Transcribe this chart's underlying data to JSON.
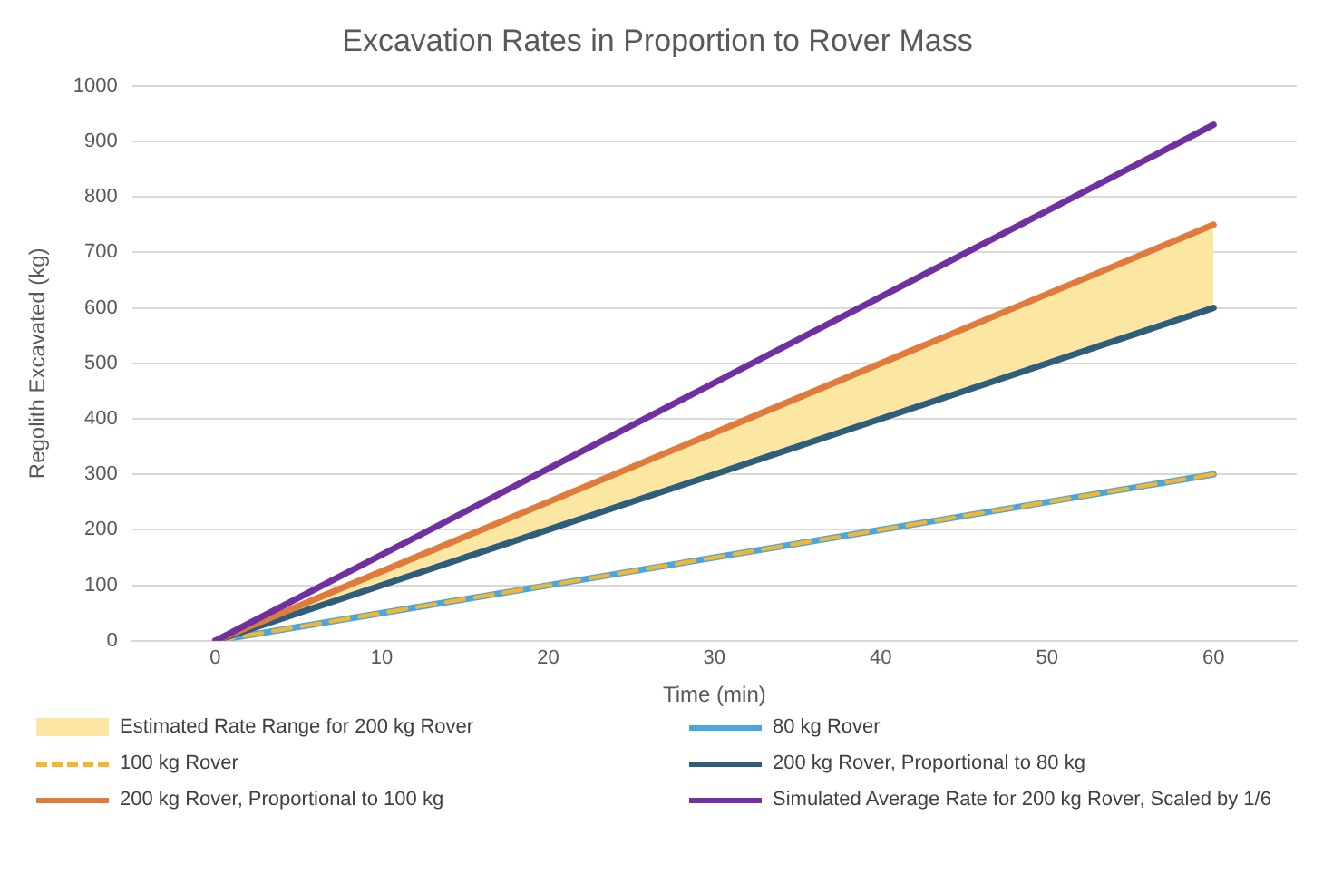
{
  "chart_data": {
    "type": "line",
    "title": "Excavation Rates in Proportion to Rover Mass",
    "xlabel": "Time (min)",
    "ylabel": "Regolith Excavated (kg)",
    "x": [
      0,
      60
    ],
    "xlim": [
      -5,
      65
    ],
    "xticks": [
      0,
      10,
      20,
      30,
      40,
      50,
      60
    ],
    "ylim": [
      0,
      1000
    ],
    "yticks": [
      0,
      100,
      200,
      300,
      400,
      500,
      600,
      700,
      800,
      900,
      1000
    ],
    "grid": "y",
    "legend": "bottom",
    "marker": "none",
    "series": [
      {
        "name": "Estimated Rate Range for 200 kg Rover",
        "type": "area",
        "color": "#fbe6a2",
        "values": [
          null,
          null
        ],
        "lower": [
          0,
          600
        ],
        "upper": [
          0,
          750
        ]
      },
      {
        "name": "80 kg Rover",
        "color": "#4aa6e0",
        "values": [
          0,
          300
        ],
        "line_style": "solid"
      },
      {
        "name": "100 kg Rover",
        "color": "#f5b52e",
        "values": [
          0,
          300
        ],
        "line_style": "dashed"
      },
      {
        "name": "200 kg Rover, Proportional to 80 kg",
        "color": "#2f5d7c",
        "values": [
          0,
          600
        ],
        "line_style": "solid"
      },
      {
        "name": "200 kg Rover, Proportional to 100 kg",
        "color": "#e07b3c",
        "values": [
          0,
          750
        ],
        "line_style": "solid"
      },
      {
        "name": "Simulated Average Rate for 200 kg Rover, Scaled by 1/6",
        "color": "#7030a0",
        "values": [
          0,
          930
        ],
        "line_style": "solid"
      }
    ]
  }
}
